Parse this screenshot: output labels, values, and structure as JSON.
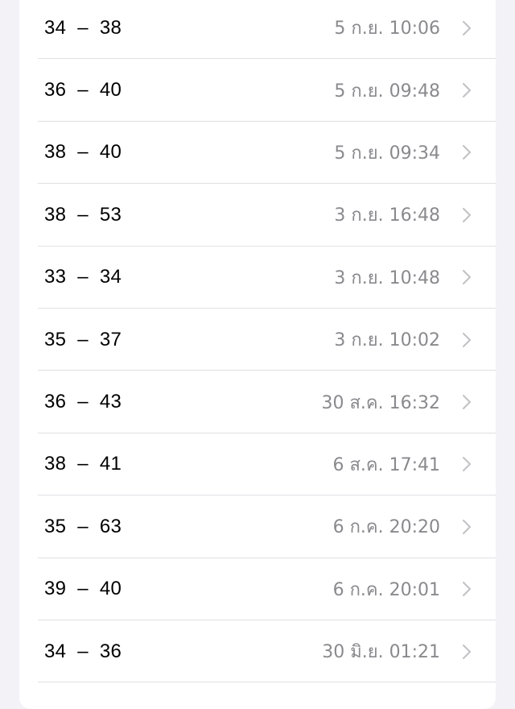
{
  "colors": {
    "background": "#f2f2f7",
    "card": "#ffffff",
    "primary_text": "#000000",
    "secondary_text": "#8a8a8e",
    "chevron": "#c4c4c7"
  },
  "rows": [
    {
      "range": "34  –  38",
      "time": "5 ก.ย. 10:06"
    },
    {
      "range": "36  –  40",
      "time": "5 ก.ย. 09:48"
    },
    {
      "range": "38  –  40",
      "time": "5 ก.ย. 09:34"
    },
    {
      "range": "38  –  53",
      "time": "3 ก.ย. 16:48"
    },
    {
      "range": "33  –  34",
      "time": "3 ก.ย. 10:48"
    },
    {
      "range": "35  –  37",
      "time": "3 ก.ย. 10:02"
    },
    {
      "range": "36  –  43",
      "time": "30 ส.ค. 16:32"
    },
    {
      "range": "38  –  41",
      "time": "6 ส.ค. 17:41"
    },
    {
      "range": "35  –  63",
      "time": "6 ก.ค. 20:20"
    },
    {
      "range": "39  –  40",
      "time": "6 ก.ค. 20:01"
    },
    {
      "range": "34  –  36",
      "time": "30 มิ.ย. 01:21"
    }
  ]
}
